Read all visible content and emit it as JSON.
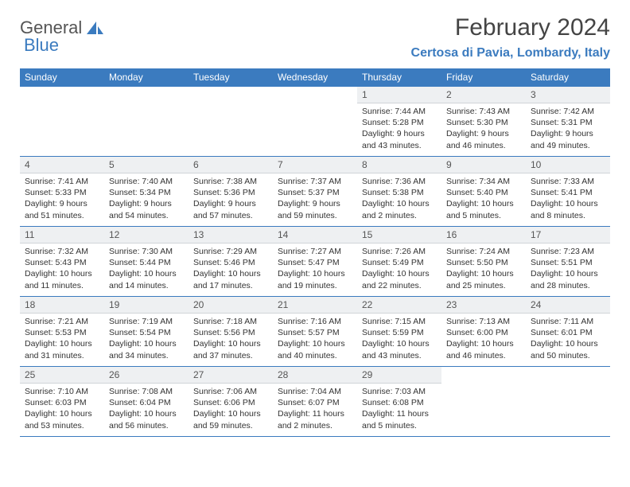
{
  "logo": {
    "part1": "General",
    "part2": "Blue"
  },
  "title": "February 2024",
  "location": "Certosa di Pavia, Lombardy, Italy",
  "colors": {
    "accent": "#3b7bbf",
    "header_bg": "#3b7bbf",
    "day_num_bg": "#eef0f2",
    "border": "#3b7bbf",
    "text": "#333333",
    "logo_grey": "#555555"
  },
  "day_names": [
    "Sunday",
    "Monday",
    "Tuesday",
    "Wednesday",
    "Thursday",
    "Friday",
    "Saturday"
  ],
  "weeks": [
    [
      null,
      null,
      null,
      null,
      {
        "n": "1",
        "sunrise": "7:44 AM",
        "sunset": "5:28 PM",
        "daylight": "9 hours and 43 minutes."
      },
      {
        "n": "2",
        "sunrise": "7:43 AM",
        "sunset": "5:30 PM",
        "daylight": "9 hours and 46 minutes."
      },
      {
        "n": "3",
        "sunrise": "7:42 AM",
        "sunset": "5:31 PM",
        "daylight": "9 hours and 49 minutes."
      }
    ],
    [
      {
        "n": "4",
        "sunrise": "7:41 AM",
        "sunset": "5:33 PM",
        "daylight": "9 hours and 51 minutes."
      },
      {
        "n": "5",
        "sunrise": "7:40 AM",
        "sunset": "5:34 PM",
        "daylight": "9 hours and 54 minutes."
      },
      {
        "n": "6",
        "sunrise": "7:38 AM",
        "sunset": "5:36 PM",
        "daylight": "9 hours and 57 minutes."
      },
      {
        "n": "7",
        "sunrise": "7:37 AM",
        "sunset": "5:37 PM",
        "daylight": "9 hours and 59 minutes."
      },
      {
        "n": "8",
        "sunrise": "7:36 AM",
        "sunset": "5:38 PM",
        "daylight": "10 hours and 2 minutes."
      },
      {
        "n": "9",
        "sunrise": "7:34 AM",
        "sunset": "5:40 PM",
        "daylight": "10 hours and 5 minutes."
      },
      {
        "n": "10",
        "sunrise": "7:33 AM",
        "sunset": "5:41 PM",
        "daylight": "10 hours and 8 minutes."
      }
    ],
    [
      {
        "n": "11",
        "sunrise": "7:32 AM",
        "sunset": "5:43 PM",
        "daylight": "10 hours and 11 minutes."
      },
      {
        "n": "12",
        "sunrise": "7:30 AM",
        "sunset": "5:44 PM",
        "daylight": "10 hours and 14 minutes."
      },
      {
        "n": "13",
        "sunrise": "7:29 AM",
        "sunset": "5:46 PM",
        "daylight": "10 hours and 17 minutes."
      },
      {
        "n": "14",
        "sunrise": "7:27 AM",
        "sunset": "5:47 PM",
        "daylight": "10 hours and 19 minutes."
      },
      {
        "n": "15",
        "sunrise": "7:26 AM",
        "sunset": "5:49 PM",
        "daylight": "10 hours and 22 minutes."
      },
      {
        "n": "16",
        "sunrise": "7:24 AM",
        "sunset": "5:50 PM",
        "daylight": "10 hours and 25 minutes."
      },
      {
        "n": "17",
        "sunrise": "7:23 AM",
        "sunset": "5:51 PM",
        "daylight": "10 hours and 28 minutes."
      }
    ],
    [
      {
        "n": "18",
        "sunrise": "7:21 AM",
        "sunset": "5:53 PM",
        "daylight": "10 hours and 31 minutes."
      },
      {
        "n": "19",
        "sunrise": "7:19 AM",
        "sunset": "5:54 PM",
        "daylight": "10 hours and 34 minutes."
      },
      {
        "n": "20",
        "sunrise": "7:18 AM",
        "sunset": "5:56 PM",
        "daylight": "10 hours and 37 minutes."
      },
      {
        "n": "21",
        "sunrise": "7:16 AM",
        "sunset": "5:57 PM",
        "daylight": "10 hours and 40 minutes."
      },
      {
        "n": "22",
        "sunrise": "7:15 AM",
        "sunset": "5:59 PM",
        "daylight": "10 hours and 43 minutes."
      },
      {
        "n": "23",
        "sunrise": "7:13 AM",
        "sunset": "6:00 PM",
        "daylight": "10 hours and 46 minutes."
      },
      {
        "n": "24",
        "sunrise": "7:11 AM",
        "sunset": "6:01 PM",
        "daylight": "10 hours and 50 minutes."
      }
    ],
    [
      {
        "n": "25",
        "sunrise": "7:10 AM",
        "sunset": "6:03 PM",
        "daylight": "10 hours and 53 minutes."
      },
      {
        "n": "26",
        "sunrise": "7:08 AM",
        "sunset": "6:04 PM",
        "daylight": "10 hours and 56 minutes."
      },
      {
        "n": "27",
        "sunrise": "7:06 AM",
        "sunset": "6:06 PM",
        "daylight": "10 hours and 59 minutes."
      },
      {
        "n": "28",
        "sunrise": "7:04 AM",
        "sunset": "6:07 PM",
        "daylight": "11 hours and 2 minutes."
      },
      {
        "n": "29",
        "sunrise": "7:03 AM",
        "sunset": "6:08 PM",
        "daylight": "11 hours and 5 minutes."
      },
      null,
      null
    ]
  ],
  "labels": {
    "sunrise": "Sunrise: ",
    "sunset": "Sunset: ",
    "daylight": "Daylight: "
  }
}
